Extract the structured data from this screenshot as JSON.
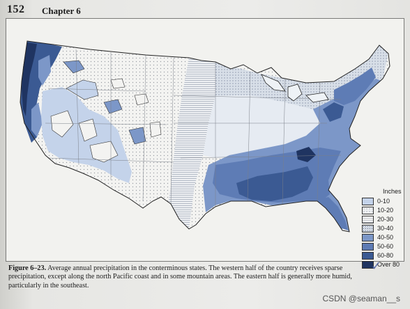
{
  "header": {
    "page_number": "152",
    "chapter": "Chapter 6"
  },
  "legend": {
    "title": "Inches",
    "items": [
      {
        "label": "0-10",
        "color": "#c4d3ea"
      },
      {
        "label": "10-20",
        "color": "#eef0f2"
      },
      {
        "label": "20-30",
        "color": "#f4f4f2"
      },
      {
        "label": "30-40",
        "color": "#d6dde6"
      },
      {
        "label": "40-50",
        "color": "#7c97c8"
      },
      {
        "label": "50-60",
        "color": "#5e7cb5"
      },
      {
        "label": "60-80",
        "color": "#3b5a93"
      },
      {
        "label": "Over 80",
        "color": "#1f3461"
      }
    ]
  },
  "caption": {
    "figure": "Figure 6–23.",
    "text": "Average annual precipitation in the conterminous states. The western half of the country receives sparse precipitation, except along the north Pacific coast and in some mountain areas. The eastern half is generally more humid, particularly in the southeast."
  },
  "mark": "✓",
  "watermark": "CSDN @seaman__s"
}
